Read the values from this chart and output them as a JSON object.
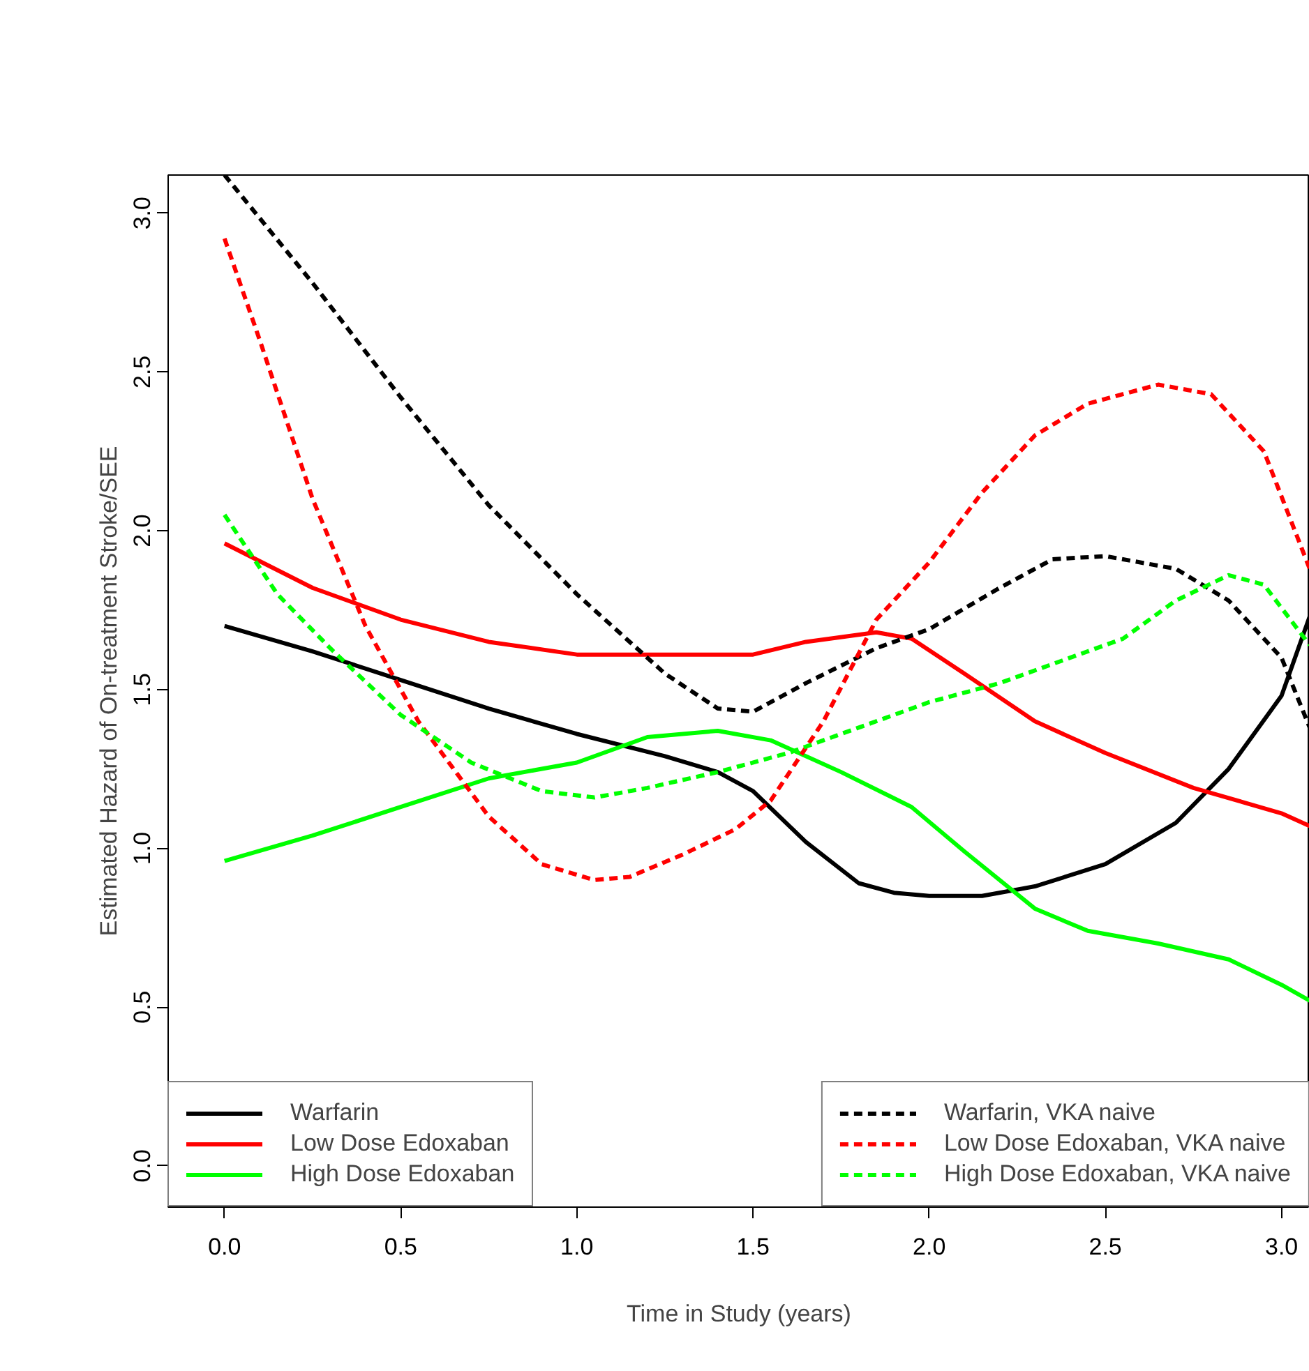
{
  "chart_data": {
    "type": "line",
    "xlabel": "Time in Study (years)",
    "ylabel": "Estimated Hazard of On-treatment Stroke/SEE",
    "xlim": [
      -0.16,
      3.08
    ],
    "ylim": [
      -0.13,
      3.12
    ],
    "xticks": [
      {
        "value": 0,
        "label": "0.0"
      },
      0.5,
      {
        "value": 1,
        "label": "1.0"
      },
      1.5,
      {
        "value": 2,
        "label": "2.0"
      },
      2.5,
      {
        "value": 3,
        "label": "3.0"
      }
    ],
    "yticks": [
      {
        "value": 0,
        "label": "0.0"
      },
      0.5,
      {
        "value": 1,
        "label": "1.0"
      },
      1.5,
      {
        "value": 2,
        "label": "2.0"
      },
      2.5,
      {
        "value": 3,
        "label": "3.0"
      }
    ],
    "grid": false,
    "legend": "bottom",
    "marker": "none",
    "series": [
      {
        "name": "Warfarin",
        "color": "#000000",
        "line_style": "solid",
        "x": [
          0,
          0.25,
          0.5,
          0.75,
          1.0,
          1.25,
          1.4,
          1.5,
          1.65,
          1.8,
          1.9,
          2.0,
          2.15,
          2.3,
          2.5,
          2.7,
          2.85,
          3.0,
          3.08
        ],
        "values": [
          1.7,
          1.62,
          1.53,
          1.44,
          1.36,
          1.29,
          1.24,
          1.18,
          1.02,
          0.89,
          0.86,
          0.85,
          0.85,
          0.88,
          0.95,
          1.08,
          1.25,
          1.48,
          1.73
        ]
      },
      {
        "name": "Low Dose Edoxaban",
        "color": "#ff0000",
        "line_style": "solid",
        "x": [
          0,
          0.25,
          0.5,
          0.75,
          1.0,
          1.25,
          1.5,
          1.65,
          1.85,
          1.95,
          2.1,
          2.3,
          2.5,
          2.75,
          3.0,
          3.08
        ],
        "values": [
          1.96,
          1.82,
          1.72,
          1.65,
          1.61,
          1.61,
          1.61,
          1.65,
          1.68,
          1.66,
          1.55,
          1.4,
          1.3,
          1.19,
          1.11,
          1.07
        ]
      },
      {
        "name": "High Dose Edoxaban",
        "color": "#00ff00",
        "line_style": "solid",
        "x": [
          0,
          0.25,
          0.5,
          0.75,
          1.0,
          1.2,
          1.4,
          1.55,
          1.75,
          1.95,
          2.1,
          2.3,
          2.45,
          2.65,
          2.85,
          3.0,
          3.08
        ],
        "values": [
          0.96,
          1.04,
          1.13,
          1.22,
          1.27,
          1.35,
          1.37,
          1.34,
          1.24,
          1.13,
          0.99,
          0.81,
          0.74,
          0.7,
          0.65,
          0.57,
          0.52
        ]
      },
      {
        "name": "Warfarin, VKA naive",
        "color": "#000000",
        "line_style": "dashed",
        "x": [
          0,
          0.25,
          0.5,
          0.75,
          1.0,
          1.25,
          1.4,
          1.5,
          1.65,
          1.85,
          2.0,
          2.2,
          2.35,
          2.5,
          2.7,
          2.85,
          3.0,
          3.08
        ],
        "values": [
          3.12,
          2.78,
          2.42,
          2.08,
          1.8,
          1.55,
          1.44,
          1.43,
          1.52,
          1.63,
          1.69,
          1.82,
          1.91,
          1.92,
          1.88,
          1.78,
          1.6,
          1.38
        ]
      },
      {
        "name": "Low Dose Edoxaban, VKA naive",
        "color": "#ff0000",
        "line_style": "dashed",
        "x": [
          0,
          0.1,
          0.25,
          0.4,
          0.55,
          0.75,
          0.9,
          1.05,
          1.15,
          1.3,
          1.45,
          1.55,
          1.7,
          1.85,
          2.0,
          2.15,
          2.3,
          2.45,
          2.65,
          2.8,
          2.95,
          3.08
        ],
        "values": [
          2.92,
          2.6,
          2.1,
          1.7,
          1.4,
          1.1,
          0.95,
          0.9,
          0.91,
          0.98,
          1.06,
          1.15,
          1.4,
          1.72,
          1.9,
          2.12,
          2.3,
          2.4,
          2.46,
          2.43,
          2.25,
          1.88
        ]
      },
      {
        "name": "High Dose Edoxaban, VKA naive",
        "color": "#00ff00",
        "line_style": "dashed",
        "x": [
          0,
          0.15,
          0.3,
          0.5,
          0.7,
          0.9,
          1.05,
          1.2,
          1.4,
          1.6,
          1.8,
          2.0,
          2.2,
          2.4,
          2.55,
          2.7,
          2.85,
          2.95,
          3.08
        ],
        "values": [
          2.05,
          1.8,
          1.63,
          1.42,
          1.27,
          1.18,
          1.16,
          1.19,
          1.24,
          1.3,
          1.38,
          1.46,
          1.52,
          1.6,
          1.66,
          1.78,
          1.86,
          1.83,
          1.64
        ]
      }
    ]
  }
}
